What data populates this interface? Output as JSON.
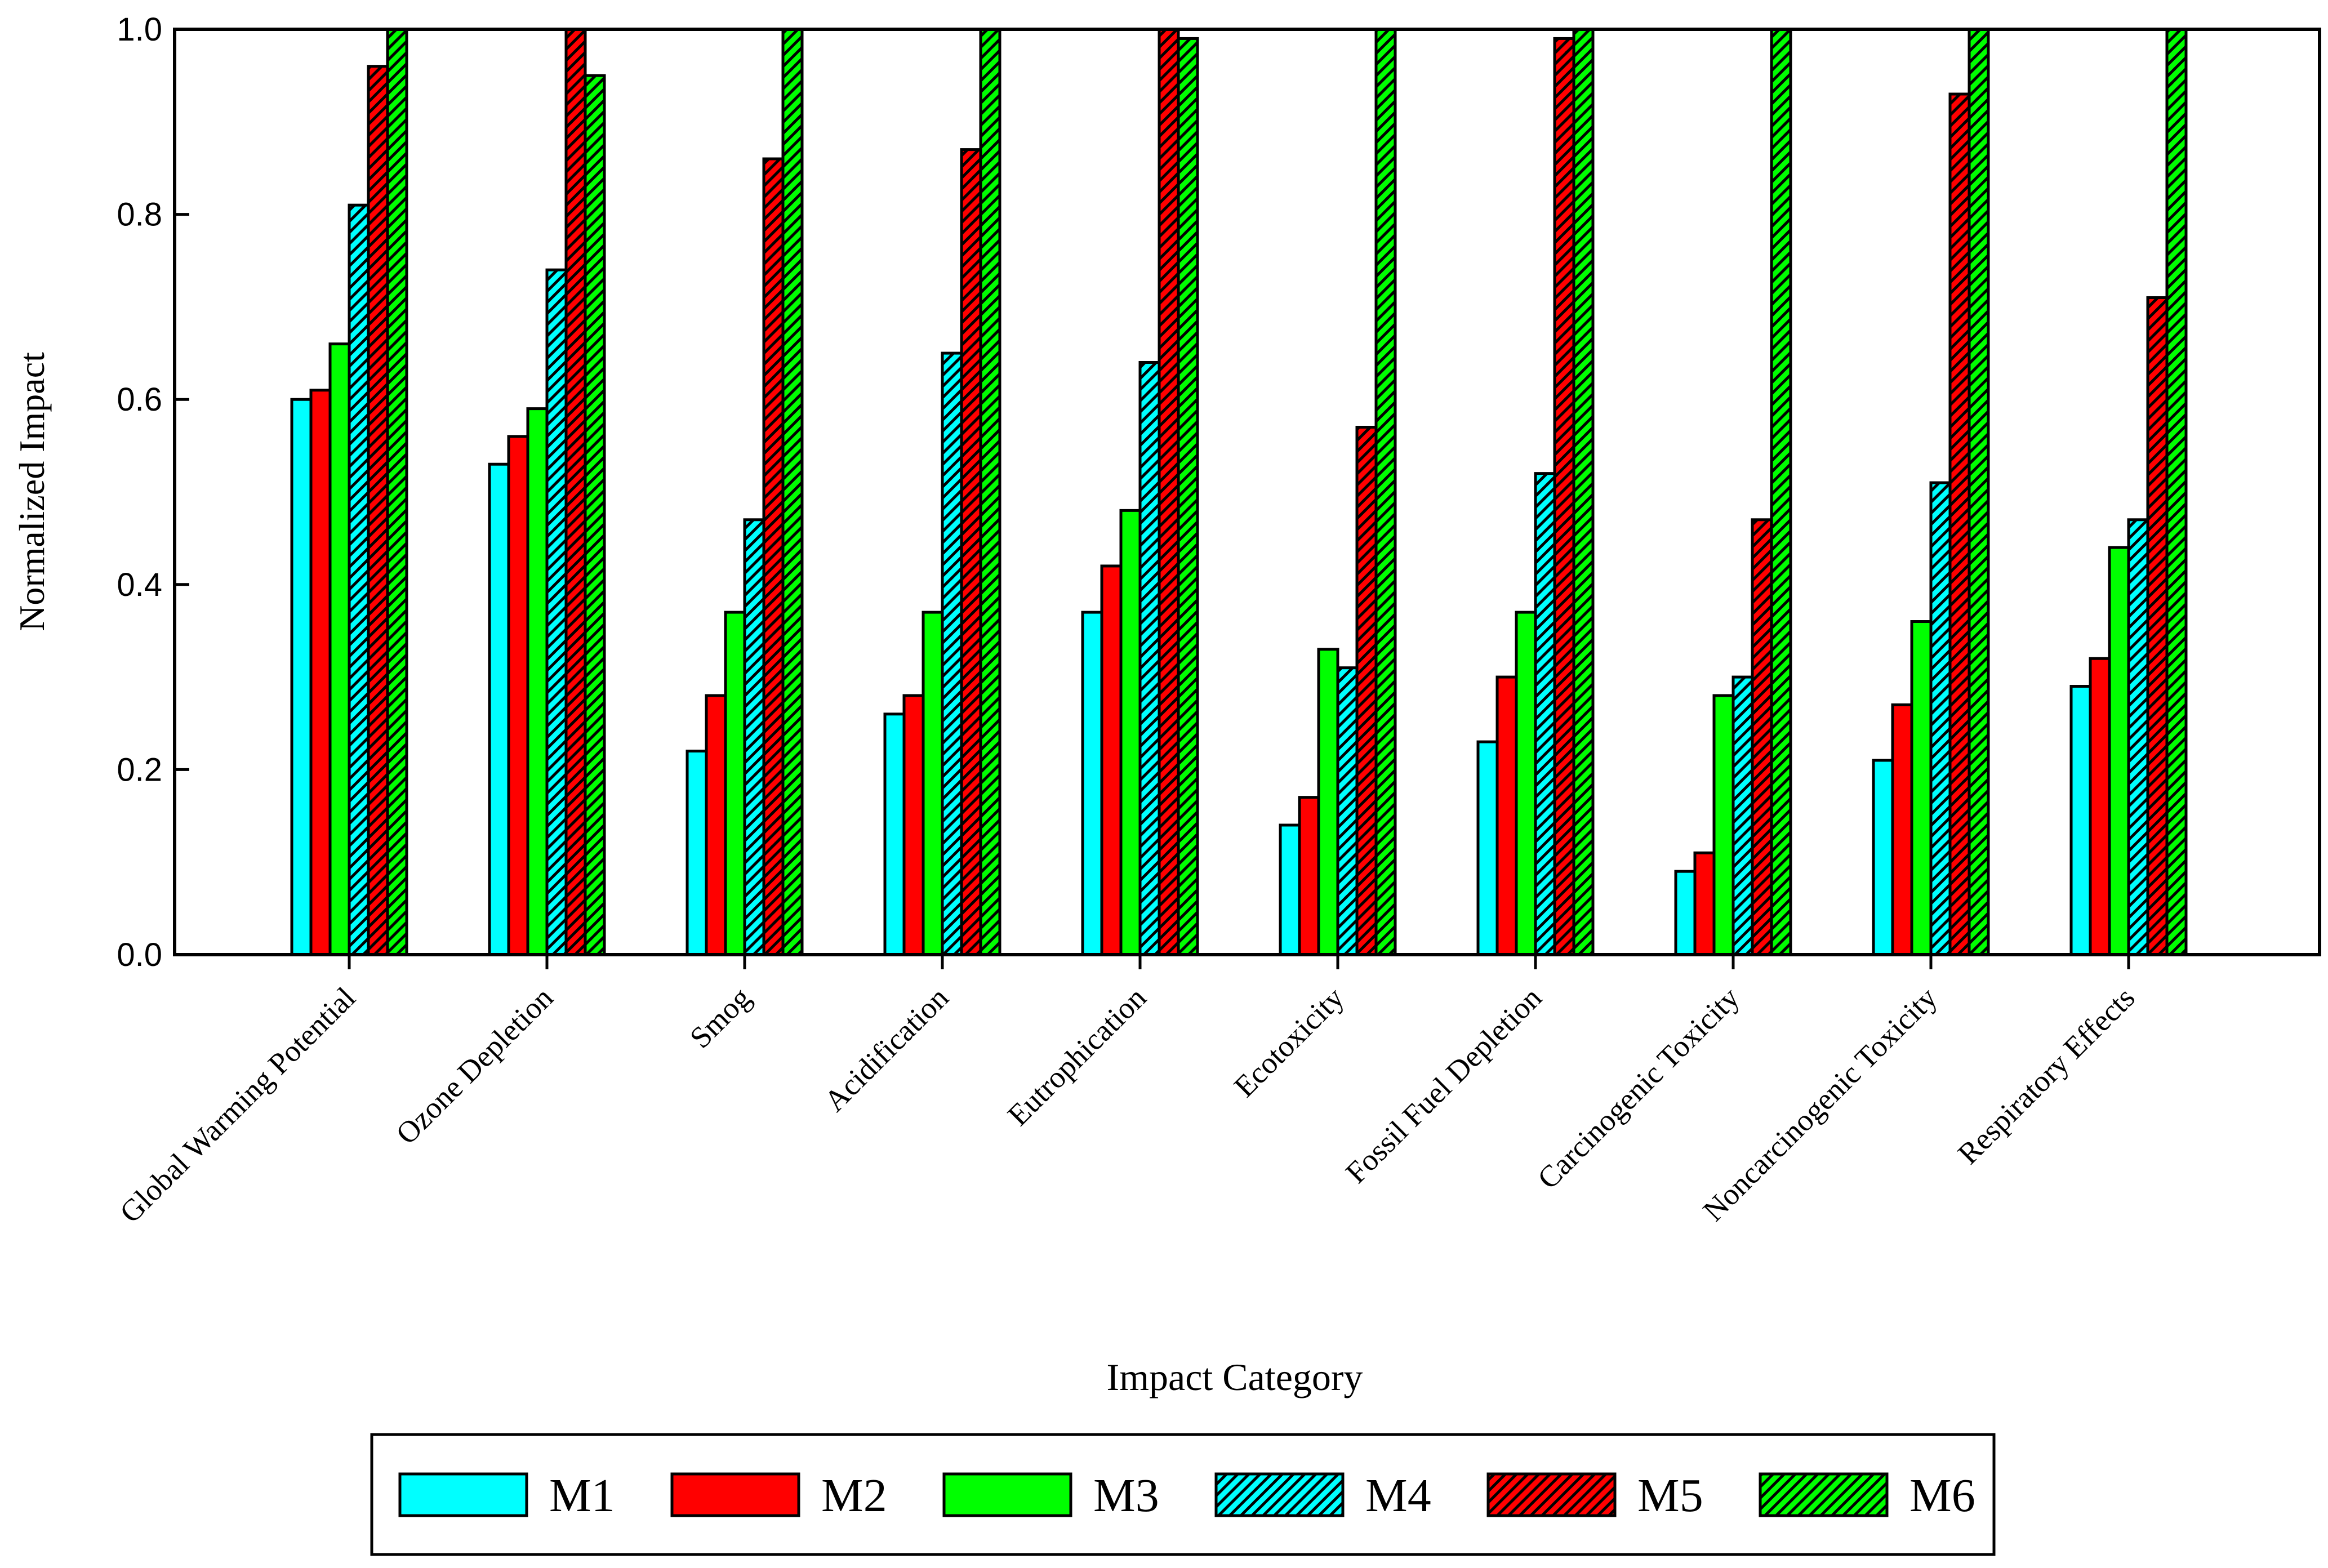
{
  "chart_data": {
    "type": "bar",
    "title": "",
    "xlabel": "Impact Category",
    "ylabel": "Normalized Impact",
    "ylim": [
      0,
      1.0
    ],
    "yticks": [
      "0.0",
      "0.2",
      "0.4",
      "0.6",
      "0.8",
      "1.0"
    ],
    "ytick_values": [
      0.0,
      0.2,
      0.4,
      0.6,
      0.8,
      1.0
    ],
    "grid": false,
    "legend_position": "bottom",
    "categories": [
      "Global Warming Potential",
      "Ozone Depletion",
      "Smog",
      "Acidification",
      "Eutrophication",
      "Ecotoxicity",
      "Fossil Fuel Depletion",
      "Carcinogenic Toxicity",
      "Noncarcinogenic Toxicity",
      "Respiratory Effects"
    ],
    "series": [
      {
        "name": "M1",
        "color": "#00ffff",
        "hatched": false,
        "values": [
          0.6,
          0.53,
          0.22,
          0.26,
          0.37,
          0.14,
          0.23,
          0.09,
          0.21,
          0.29
        ]
      },
      {
        "name": "M2",
        "color": "#ff0000",
        "hatched": false,
        "values": [
          0.61,
          0.56,
          0.28,
          0.28,
          0.42,
          0.17,
          0.3,
          0.11,
          0.27,
          0.32
        ]
      },
      {
        "name": "M3",
        "color": "#00ff00",
        "hatched": false,
        "values": [
          0.66,
          0.59,
          0.37,
          0.37,
          0.48,
          0.33,
          0.37,
          0.28,
          0.36,
          0.44
        ]
      },
      {
        "name": "M4",
        "color": "#00ffff",
        "hatched": true,
        "values": [
          0.81,
          0.74,
          0.47,
          0.65,
          0.64,
          0.31,
          0.52,
          0.3,
          0.51,
          0.47
        ]
      },
      {
        "name": "M5",
        "color": "#ff0000",
        "hatched": true,
        "values": [
          0.96,
          1.0,
          0.86,
          0.87,
          1.0,
          0.57,
          0.99,
          0.47,
          0.93,
          0.71
        ]
      },
      {
        "name": "M6",
        "color": "#00ff00",
        "hatched": true,
        "values": [
          1.0,
          0.95,
          1.0,
          1.0,
          0.99,
          1.0,
          1.0,
          1.0,
          1.0,
          1.0
        ]
      }
    ]
  }
}
